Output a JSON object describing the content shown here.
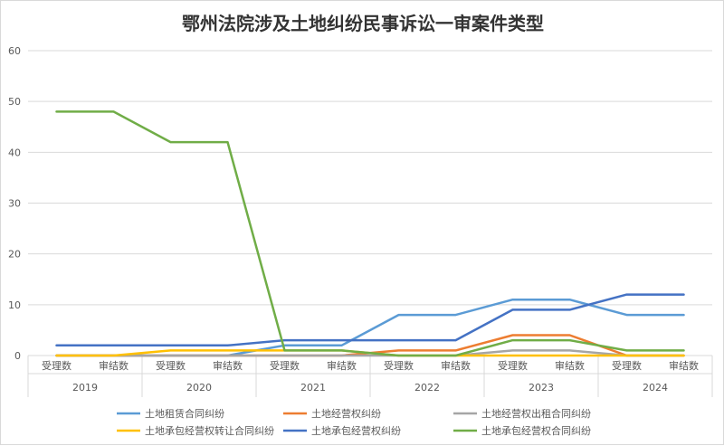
{
  "chart_data": {
    "type": "line",
    "title": "鄂州法院涉及土地纠纷民事诉讼一审案件类型",
    "ylim": [
      0,
      60
    ],
    "yticks": [
      0,
      10,
      20,
      30,
      40,
      50,
      60
    ],
    "grid": true,
    "legend_position": "bottom",
    "groups": [
      "2019",
      "2020",
      "2021",
      "2022",
      "2023",
      "2024"
    ],
    "categories": [
      "受理数",
      "审结数",
      "受理数",
      "审结数",
      "受理数",
      "审结数",
      "受理数",
      "审结数",
      "受理数",
      "审结数",
      "受理数",
      "审结数"
    ],
    "series": [
      {
        "name": "土地租赁合同纠纷",
        "color": "#5b9bd5",
        "values": [
          0,
          0,
          0,
          0,
          2,
          2,
          8,
          8,
          11,
          11,
          8,
          8
        ]
      },
      {
        "name": "土地经营权纠纷",
        "color": "#ed7d31",
        "values": [
          0,
          0,
          0,
          0,
          0,
          0,
          1,
          1,
          4,
          4,
          0,
          0
        ]
      },
      {
        "name": "土地经营权出租合同纠纷",
        "color": "#a5a5a5",
        "values": [
          0,
          0,
          0,
          0,
          0,
          0,
          0,
          0,
          1,
          1,
          0,
          0
        ]
      },
      {
        "name": "土地承包经营权转让合同纠纷",
        "color": "#ffc000",
        "values": [
          0,
          0,
          1,
          1,
          1,
          1,
          0,
          0,
          0,
          0,
          0,
          0
        ]
      },
      {
        "name": "土地承包经营权纠纷",
        "color": "#4472c4",
        "values": [
          2,
          2,
          2,
          2,
          3,
          3,
          3,
          3,
          9,
          9,
          12,
          12
        ]
      },
      {
        "name": "土地承包经营权合同纠纷",
        "color": "#70ad47",
        "values": [
          48,
          48,
          42,
          42,
          1,
          1,
          0,
          0,
          3,
          3,
          1,
          1
        ]
      }
    ]
  }
}
